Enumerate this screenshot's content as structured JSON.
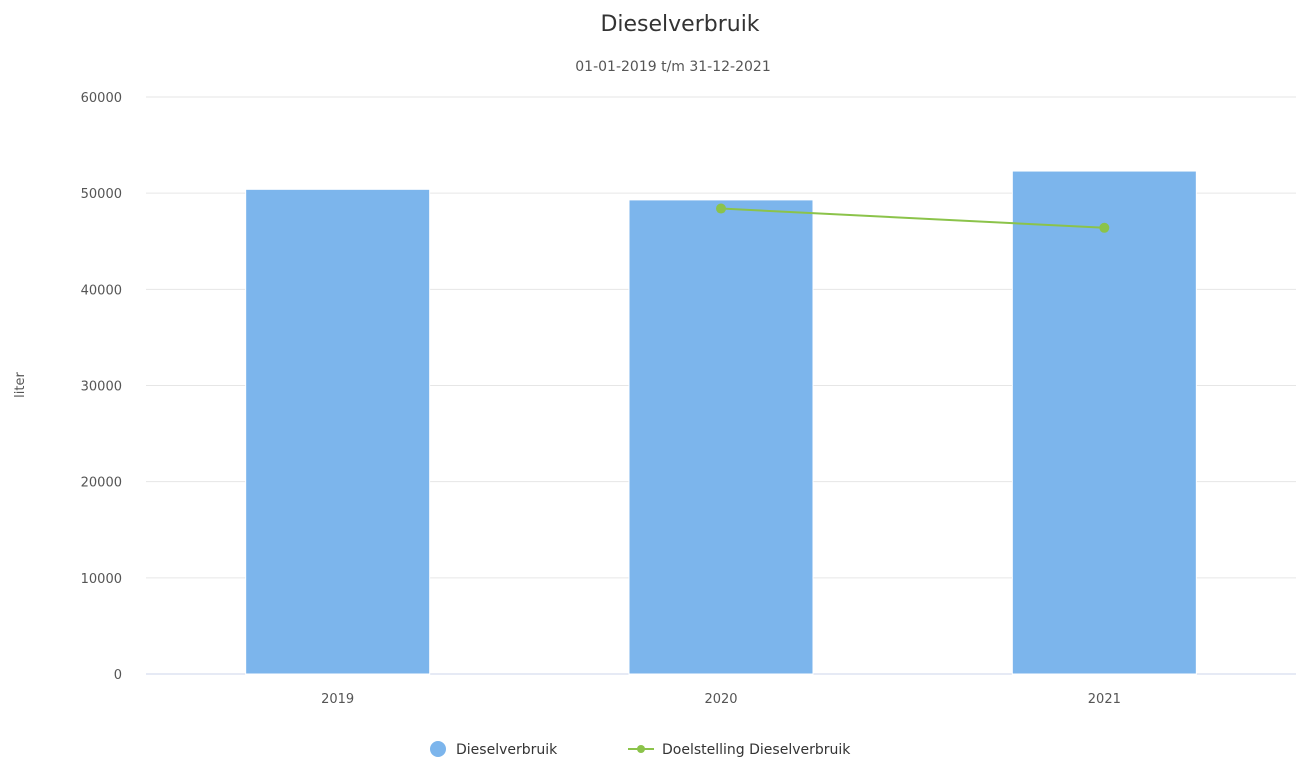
{
  "chart_data": {
    "type": "bar",
    "title": "Dieselverbruik",
    "subtitle": "01-01-2019 t/m 31-12-2021",
    "xlabel": "",
    "ylabel": "liter",
    "categories": [
      "2019",
      "2020",
      "2021"
    ],
    "ylim": [
      0,
      60000
    ],
    "yticks": [
      0,
      10000,
      20000,
      30000,
      40000,
      50000,
      60000
    ],
    "grid": true,
    "legend_position": "bottom",
    "series": [
      {
        "name": "Dieselverbruik",
        "type": "bar",
        "color": "#7cb5ec",
        "values": [
          50400,
          49300,
          52300
        ]
      },
      {
        "name": "Doelstelling Dieselverbruik",
        "type": "line",
        "color": "#8bc34a",
        "values": [
          null,
          48400,
          46400
        ]
      }
    ]
  }
}
